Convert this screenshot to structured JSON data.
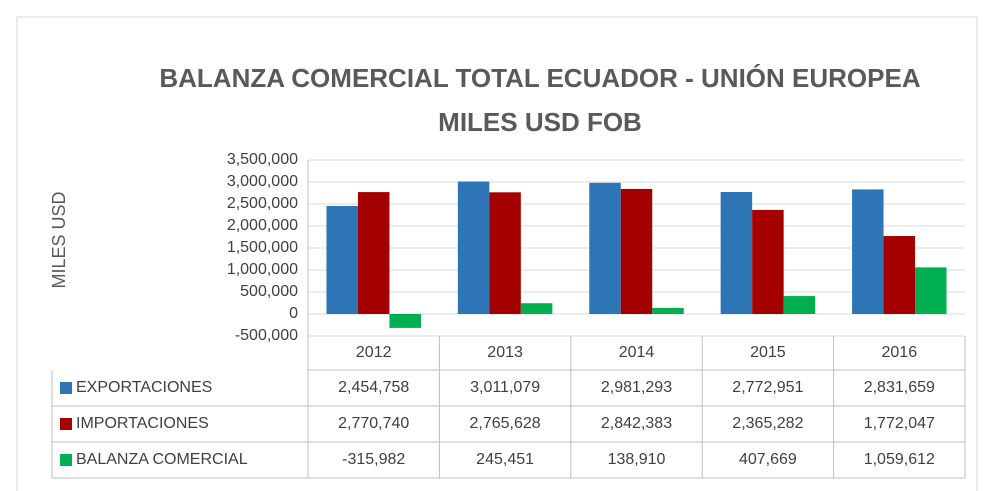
{
  "chart_data": {
    "type": "bar",
    "title": "BALANZA COMERCIAL TOTAL ECUADOR - UNIÓN EUROPEA MILES USD FOB",
    "y_label": "MILES USD",
    "categories": [
      "2012",
      "2013",
      "2014",
      "2015",
      "2016"
    ],
    "series": [
      {
        "name": "EXPORTACIONES",
        "color": "#2e75b6",
        "values": [
          2454758,
          3011079,
          2981293,
          2772951,
          2831659
        ],
        "value_labels": [
          "2,454,758",
          "3,011,079",
          "2,981,293",
          "2,772,951",
          "2,831,659"
        ]
      },
      {
        "name": "IMPORTACIONES",
        "color": "#a50000",
        "values": [
          2770740,
          2765628,
          2842383,
          2365282,
          1772047
        ],
        "value_labels": [
          "2,770,740",
          "2,765,628",
          "2,842,383",
          "2,365,282",
          "1,772,047"
        ]
      },
      {
        "name": "BALANZA COMERCIAL",
        "color": "#00b050",
        "values": [
          -315982,
          245451,
          138910,
          407669,
          1059612
        ],
        "value_labels": [
          "-315,982",
          "245,451",
          "138,910",
          "407,669",
          "1,059,612"
        ]
      }
    ],
    "ylim": [
      -500000,
      3500000
    ],
    "yticks": [
      {
        "value": -500000,
        "label": "-500,000"
      },
      0,
      {
        "value": 500000,
        "label": "500,000"
      },
      {
        "value": 1000000,
        "label": "1,000,000"
      },
      {
        "value": 1500000,
        "label": "1,500,000"
      },
      {
        "value": 2000000,
        "label": "2,000,000"
      },
      {
        "value": 2500000,
        "label": "2,500,000"
      },
      {
        "value": 3000000,
        "label": "3,000,000"
      },
      {
        "value": 3500000,
        "label": "3,500,000"
      }
    ],
    "grid": true
  }
}
